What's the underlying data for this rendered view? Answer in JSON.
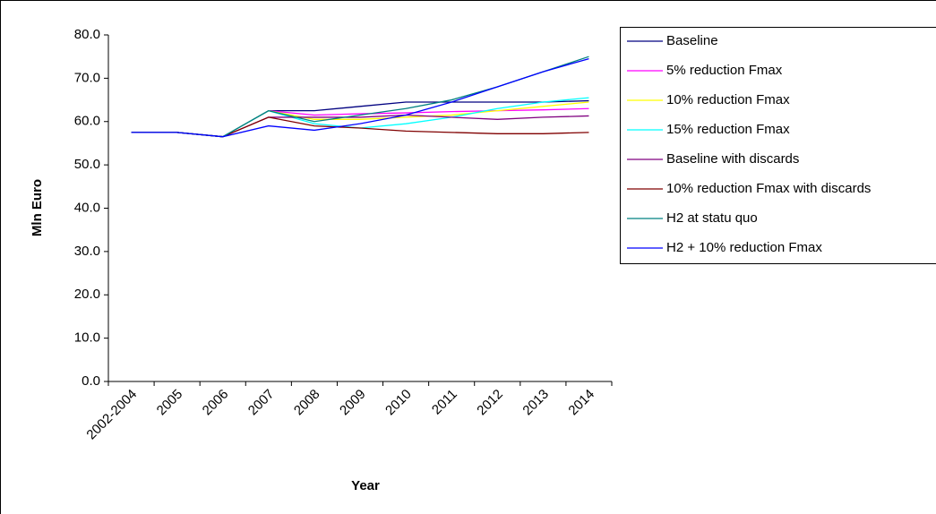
{
  "chart_data": {
    "type": "line",
    "x_label": "Year",
    "y_label": "Mln Euro",
    "categories": [
      "2002-2004",
      "2005",
      "2006",
      "2007",
      "2008",
      "2009",
      "2010",
      "2011",
      "2012",
      "2013",
      "2014"
    ],
    "ylim": [
      0,
      80
    ],
    "yticks": [
      {
        "value": 0,
        "label": "0.0"
      },
      {
        "value": 10,
        "label": "10.0"
      },
      {
        "value": 20,
        "label": "20.0"
      },
      {
        "value": 30,
        "label": "30.0"
      },
      {
        "value": 40,
        "label": "40.0"
      },
      {
        "value": 50,
        "label": "50.0"
      },
      {
        "value": 60,
        "label": "60.0"
      },
      {
        "value": 70,
        "label": "70.0"
      },
      {
        "value": 80,
        "label": "80.0"
      }
    ],
    "grid": false,
    "legend": "right",
    "series": [
      {
        "name": "Baseline",
        "color": "#000080",
        "values": [
          57.5,
          57.5,
          56.5,
          62.5,
          62.5,
          63.5,
          64.5,
          64.5,
          64.5,
          64.5,
          64.8
        ]
      },
      {
        "name": "5% reduction Fmax",
        "color": "#FF00FF",
        "values": [
          57.5,
          57.5,
          56.5,
          62.5,
          61.5,
          61.8,
          62.0,
          62.3,
          62.5,
          62.7,
          63.0
        ]
      },
      {
        "name": "10% reduction Fmax",
        "color": "#FFFF00",
        "values": [
          57.5,
          57.5,
          56.5,
          62.5,
          60.5,
          60.5,
          61.0,
          61.5,
          62.5,
          63.5,
          64.5
        ]
      },
      {
        "name": "15% reduction Fmax",
        "color": "#00FFFF",
        "values": [
          57.5,
          57.5,
          56.5,
          62.5,
          59.5,
          58.5,
          59.5,
          61.0,
          63.0,
          64.5,
          65.5
        ]
      },
      {
        "name": "Baseline with discards",
        "color": "#800080",
        "values": [
          57.5,
          57.5,
          56.5,
          61.0,
          61.0,
          61.0,
          61.5,
          61.0,
          60.5,
          61.0,
          61.3
        ]
      },
      {
        "name": "10% reduction Fmax with discards",
        "color": "#800000",
        "values": [
          57.5,
          57.5,
          56.5,
          61.0,
          59.0,
          58.5,
          57.8,
          57.5,
          57.2,
          57.2,
          57.5
        ]
      },
      {
        "name": "H2 at statu quo",
        "color": "#008080",
        "values": [
          57.5,
          57.5,
          56.5,
          62.5,
          60.0,
          61.5,
          63.0,
          65.0,
          68.0,
          71.5,
          75.0
        ]
      },
      {
        "name": "H2 + 10% reduction Fmax",
        "color": "#0000FF",
        "values": [
          57.5,
          57.5,
          56.5,
          59.0,
          58.0,
          59.5,
          61.5,
          64.5,
          68.0,
          71.5,
          74.5
        ]
      }
    ]
  }
}
